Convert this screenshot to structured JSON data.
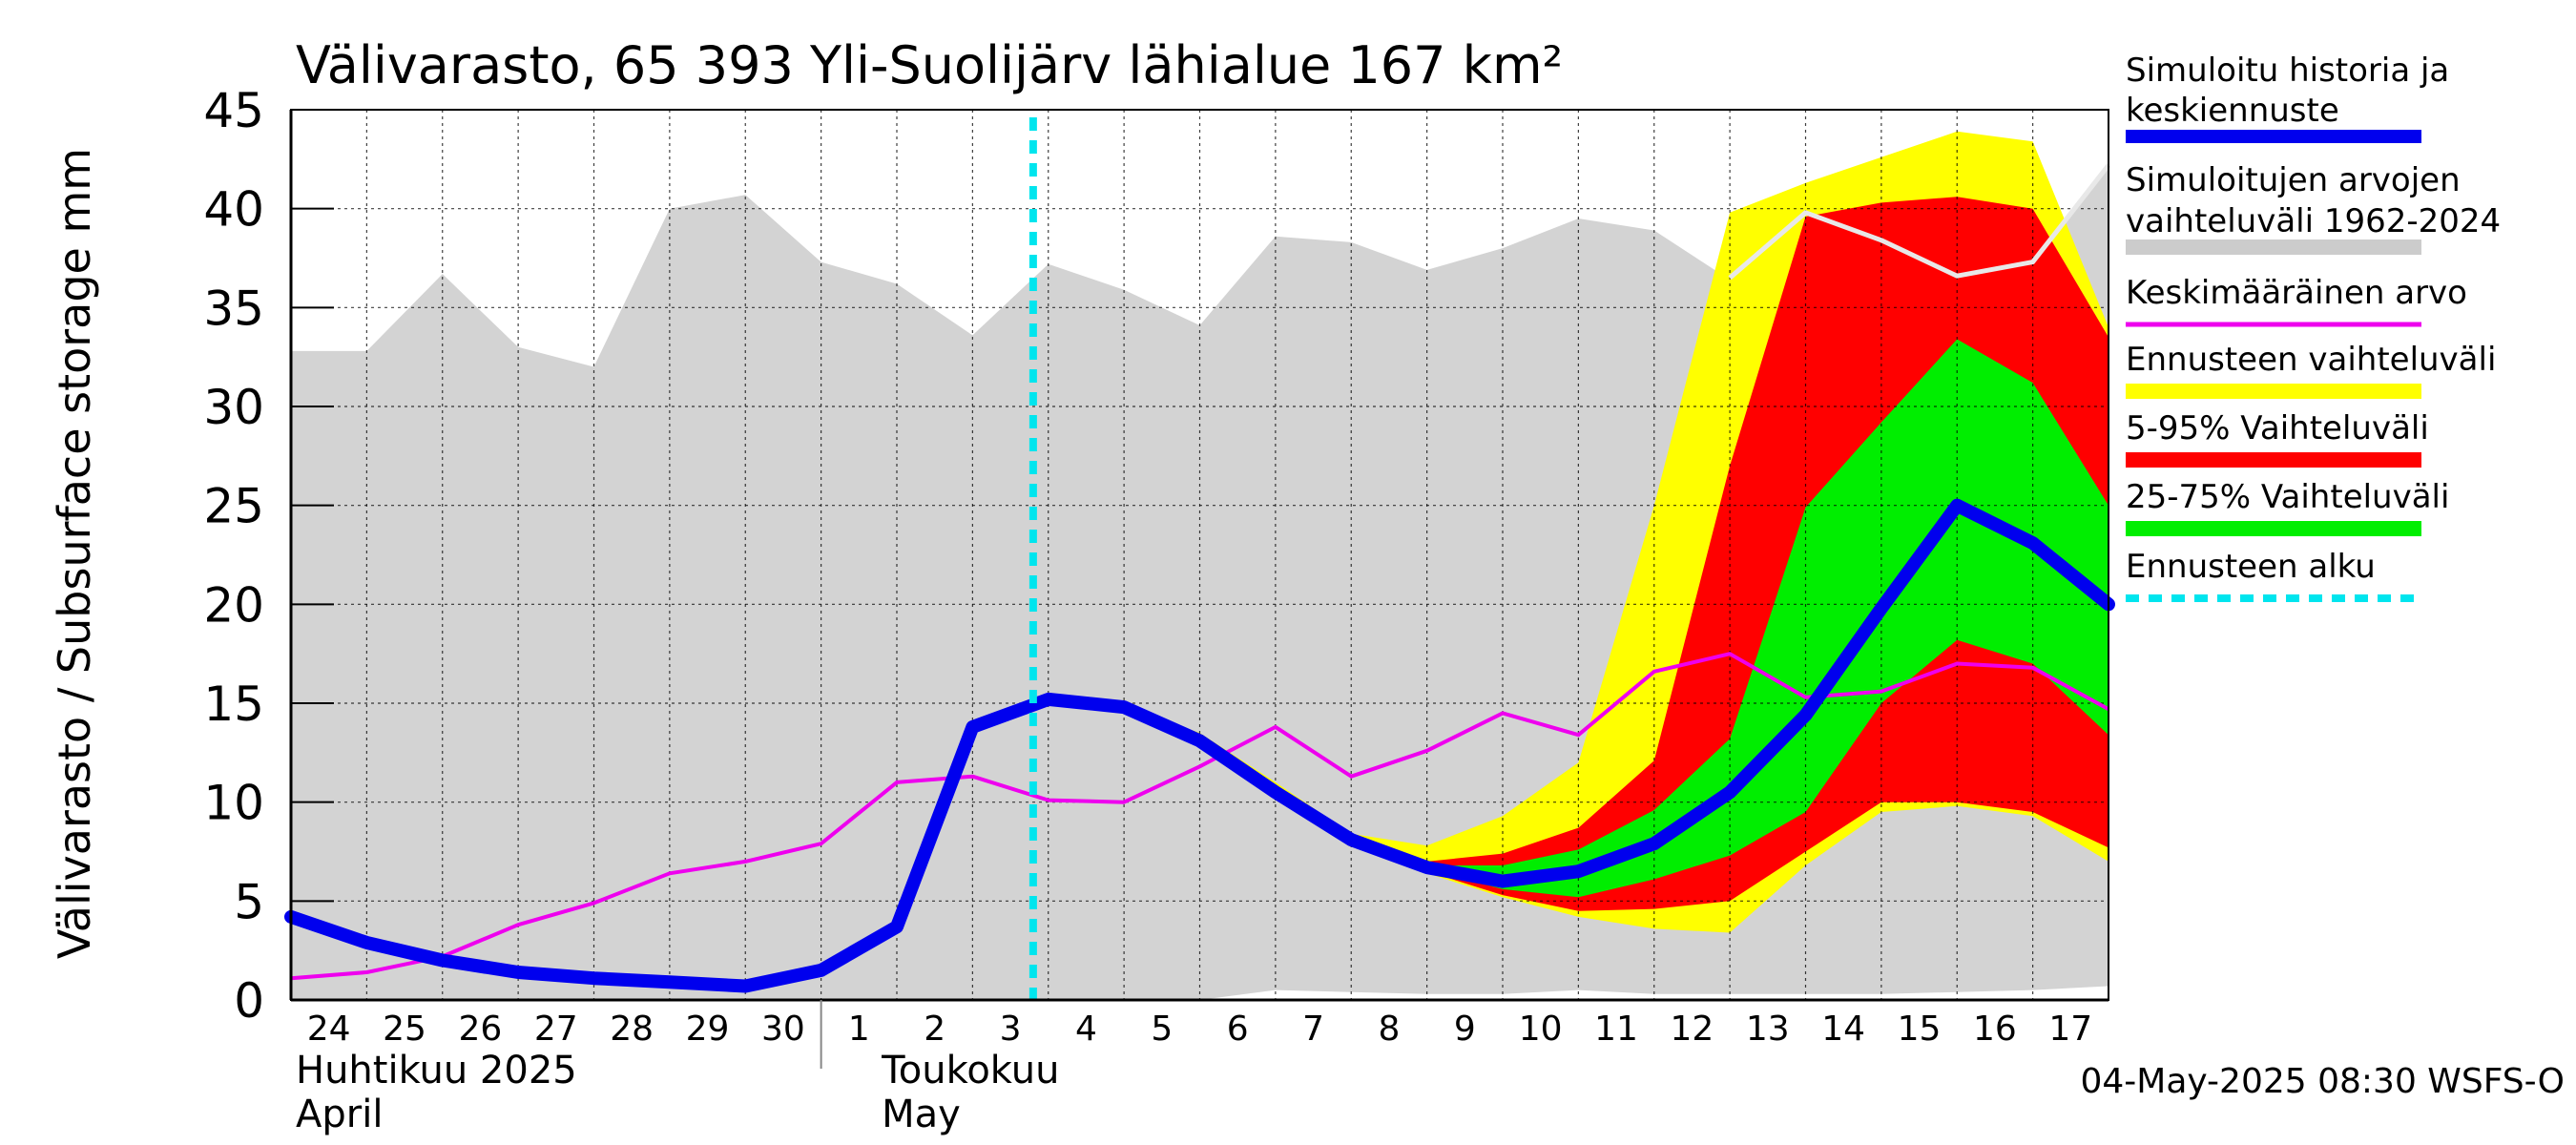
{
  "chart_data": {
    "type": "area",
    "title": "Välivarasto, 65 393 Yli-Suolijärv lähialue 167 km²",
    "ylabel": "Välivarasto / Subsurface storage  mm",
    "ylim": [
      0,
      45
    ],
    "yticks": [
      0,
      5,
      10,
      15,
      20,
      25,
      30,
      35,
      40,
      45
    ],
    "grid": true,
    "legend_position": "right",
    "x_tick_labels": [
      "24",
      "25",
      "26",
      "27",
      "28",
      "29",
      "30",
      "1",
      "2",
      "3",
      "4",
      "5",
      "6",
      "7",
      "8",
      "9",
      "10",
      "11",
      "12",
      "13",
      "14",
      "15",
      "16",
      "17"
    ],
    "month_labels": [
      {
        "line1": "Huhtikuu  2025",
        "line2": "April"
      },
      {
        "line1": "Toukokuu",
        "line2": "May"
      }
    ],
    "timestamp": "04-May-2025 08:30 WSFS-O",
    "forecast_start_index": 9.8,
    "colors": {
      "history": "#0000ee",
      "sim_range": "#d3d3d3",
      "sim_range_legend": "#cccccc",
      "median_history": "#e8e8e8",
      "mean": "#ee00ee",
      "forecast_range": "#ffff00",
      "p5_95": "#ff0000",
      "p25_75": "#00ee00",
      "forecast_start": "#00e5ee"
    },
    "legend": [
      {
        "line1": "Simuloitu historia ja",
        "line2": "keskiennuste",
        "key": "history"
      },
      {
        "line1": "Simuloitujen arvojen",
        "line2": "vaihteluväli 1962-2024",
        "key": "sim_range_legend"
      },
      {
        "line1": "Keskimääräinen arvo",
        "line2": "",
        "key": "mean"
      },
      {
        "line1": "Ennusteen vaihteluväli",
        "line2": "",
        "key": "forecast_range"
      },
      {
        "line1": "5-95% Vaihteluväli",
        "line2": "",
        "key": "p5_95"
      },
      {
        "line1": "25-75% Vaihteluväli",
        "line2": "",
        "key": "p25_75"
      },
      {
        "line1": "Ennusteen alku",
        "line2": "",
        "key": "forecast_start"
      }
    ],
    "series": {
      "sim_range_x": [
        0,
        1,
        2,
        3,
        4,
        5,
        6,
        7,
        8,
        9,
        10,
        11,
        12,
        13,
        14,
        15,
        16,
        17,
        18,
        19,
        20,
        21,
        22,
        23,
        24
      ],
      "sim_range_max": [
        32.8,
        32.8,
        36.7,
        33.0,
        32.0,
        40.0,
        40.7,
        37.3,
        36.2,
        33.6,
        37.2,
        35.9,
        34.1,
        38.6,
        38.3,
        36.9,
        38.0,
        39.5,
        38.9,
        36.4,
        40.0,
        38.6,
        36.6,
        37.5,
        42.2
      ],
      "sim_range_min": [
        0,
        0,
        0,
        0,
        0,
        0,
        0,
        0,
        0,
        0,
        0,
        0,
        0,
        0.5,
        0.4,
        0.3,
        0.3,
        0.5,
        0.3,
        0.3,
        0.3,
        0.3,
        0.4,
        0.5,
        0.7
      ],
      "median_history": [
        {
          "x": 19.0,
          "y": 36.5
        },
        {
          "x": 20.0,
          "y": 39.8
        },
        {
          "x": 21.0,
          "y": 38.4
        },
        {
          "x": 22.0,
          "y": 36.6
        },
        {
          "x": 23.0,
          "y": 37.3
        },
        {
          "x": 24.0,
          "y": 42.2
        }
      ],
      "forecast_range": {
        "x": [
          11,
          12,
          13,
          14,
          15,
          16,
          17,
          18,
          19,
          20,
          21,
          22,
          23,
          24
        ],
        "max": [
          14.9,
          13.5,
          11.0,
          8.4,
          7.8,
          9.3,
          12.0,
          25.0,
          39.8,
          41.3,
          42.6,
          43.9,
          43.4,
          34.0
        ],
        "min": [
          14.8,
          13.0,
          10.2,
          7.8,
          6.4,
          5.2,
          4.2,
          3.6,
          3.4,
          6.8,
          9.5,
          9.8,
          9.3,
          7.0
        ]
      },
      "p5_95": {
        "x": [
          11,
          12,
          13,
          14,
          15,
          16,
          17,
          18,
          19,
          20,
          21,
          22,
          23,
          24
        ],
        "max": [
          14.9,
          13.3,
          10.7,
          8.2,
          7.0,
          7.4,
          8.7,
          12.1,
          27.0,
          39.6,
          40.3,
          40.6,
          40.0,
          33.5
        ],
        "min": [
          14.8,
          13.0,
          10.3,
          7.9,
          6.5,
          5.3,
          4.5,
          4.6,
          5.0,
          7.5,
          10.0,
          10.0,
          9.5,
          7.7
        ]
      },
      "p25_75": {
        "x": [
          11,
          12,
          13,
          14,
          15,
          16,
          17,
          18,
          19,
          20,
          21,
          22,
          23,
          24
        ],
        "max": [
          14.9,
          13.2,
          10.6,
          8.1,
          6.8,
          6.8,
          7.6,
          9.6,
          13.2,
          24.9,
          29.2,
          33.4,
          31.2,
          25.0
        ],
        "min": [
          14.8,
          13.1,
          10.4,
          8.0,
          6.6,
          5.6,
          5.2,
          6.1,
          7.3,
          9.5,
          15.0,
          18.2,
          17.0,
          13.4
        ]
      },
      "mean": [
        {
          "x": 0.0,
          "y": 1.1
        },
        {
          "x": 1.0,
          "y": 1.4
        },
        {
          "x": 2.0,
          "y": 2.2
        },
        {
          "x": 3.0,
          "y": 3.8
        },
        {
          "x": 4.0,
          "y": 4.9
        },
        {
          "x": 5.0,
          "y": 6.4
        },
        {
          "x": 6.0,
          "y": 7.0
        },
        {
          "x": 7.0,
          "y": 7.9
        },
        {
          "x": 8.0,
          "y": 11.0
        },
        {
          "x": 9.0,
          "y": 11.3
        },
        {
          "x": 10.0,
          "y": 10.1
        },
        {
          "x": 11.0,
          "y": 10.0
        },
        {
          "x": 12.0,
          "y": 11.8
        },
        {
          "x": 13.0,
          "y": 13.8
        },
        {
          "x": 14.0,
          "y": 11.3
        },
        {
          "x": 15.0,
          "y": 12.6
        },
        {
          "x": 16.0,
          "y": 14.5
        },
        {
          "x": 17.0,
          "y": 13.4
        },
        {
          "x": 18.0,
          "y": 16.6
        },
        {
          "x": 19.0,
          "y": 17.5
        },
        {
          "x": 20.0,
          "y": 15.3
        },
        {
          "x": 21.0,
          "y": 15.6
        },
        {
          "x": 22.0,
          "y": 17.0
        },
        {
          "x": 23.0,
          "y": 16.8
        },
        {
          "x": 24.0,
          "y": 14.7
        }
      ],
      "history": [
        {
          "x": 0.0,
          "y": 4.2
        },
        {
          "x": 1.0,
          "y": 2.9
        },
        {
          "x": 2.0,
          "y": 2.0
        },
        {
          "x": 3.0,
          "y": 1.4
        },
        {
          "x": 4.0,
          "y": 1.1
        },
        {
          "x": 5.0,
          "y": 0.9
        },
        {
          "x": 6.0,
          "y": 0.7
        },
        {
          "x": 7.0,
          "y": 1.5
        },
        {
          "x": 8.0,
          "y": 3.7
        },
        {
          "x": 9.0,
          "y": 13.8
        },
        {
          "x": 10.0,
          "y": 15.2
        },
        {
          "x": 11.0,
          "y": 14.8
        },
        {
          "x": 12.0,
          "y": 13.1
        },
        {
          "x": 13.0,
          "y": 10.5
        },
        {
          "x": 14.0,
          "y": 8.1
        },
        {
          "x": 15.0,
          "y": 6.7
        },
        {
          "x": 16.0,
          "y": 6.0
        },
        {
          "x": 17.0,
          "y": 6.5
        },
        {
          "x": 18.0,
          "y": 7.9
        },
        {
          "x": 19.0,
          "y": 10.5
        },
        {
          "x": 20.0,
          "y": 14.4
        },
        {
          "x": 21.0,
          "y": 19.8
        },
        {
          "x": 22.0,
          "y": 25.0
        },
        {
          "x": 23.0,
          "y": 23.1
        },
        {
          "x": 24.0,
          "y": 20.0
        }
      ]
    }
  }
}
